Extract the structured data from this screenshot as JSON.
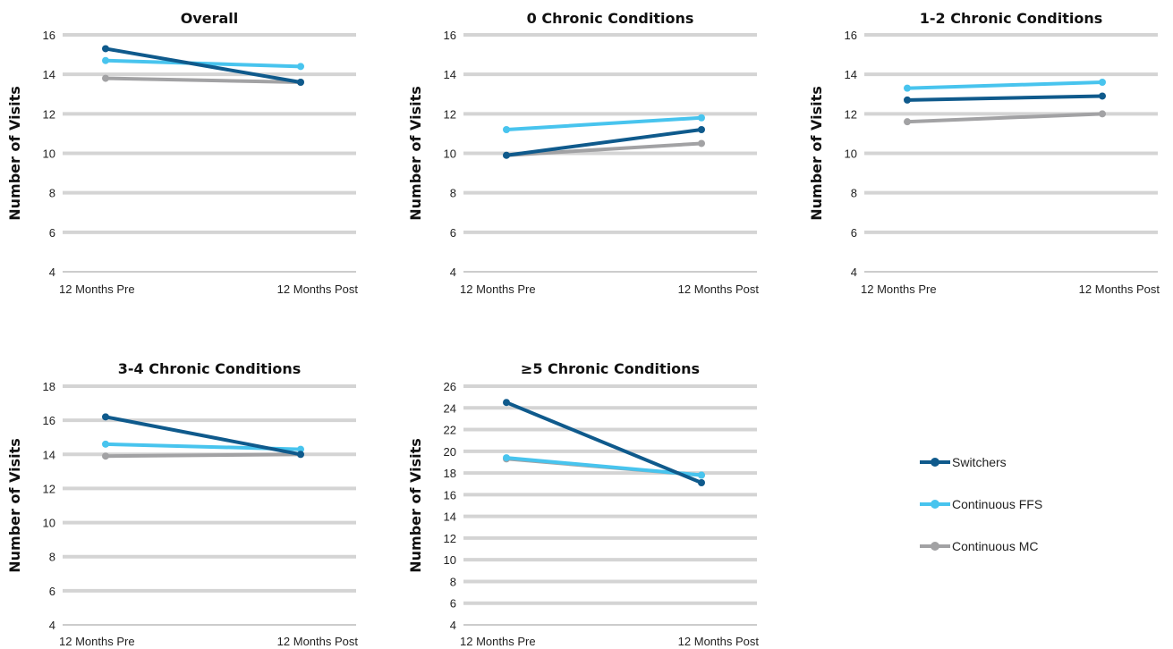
{
  "colors": {
    "switchers": "#0f5a8c",
    "ffs": "#48c4ee",
    "mc": "#a2a2a4",
    "grid": "#d4d4d4"
  },
  "legend": [
    {
      "name": "Switchers",
      "color": "#0f5a8c"
    },
    {
      "name": "Continuous FFS",
      "color": "#48c4ee"
    },
    {
      "name": "Continuous MC",
      "color": "#a2a2a4"
    }
  ],
  "chart_data": [
    {
      "type": "line",
      "title": "Overall",
      "ylabel": "Number of Visits",
      "categories": [
        "12 Months Pre",
        "12 Months Post"
      ],
      "ylim": [
        4,
        16
      ],
      "yticks": [
        4,
        6,
        8,
        10,
        12,
        14,
        16
      ],
      "series": [
        {
          "name": "Switchers",
          "values": [
            15.3,
            13.6
          ]
        },
        {
          "name": "Continuous FFS",
          "values": [
            14.7,
            14.4
          ]
        },
        {
          "name": "Continuous MC",
          "values": [
            13.8,
            13.6
          ]
        }
      ]
    },
    {
      "type": "line",
      "title": "0 Chronic Conditions",
      "ylabel": "Number of Visits",
      "categories": [
        "12 Months Pre",
        "12 Months Post"
      ],
      "ylim": [
        4,
        16
      ],
      "yticks": [
        4,
        6,
        8,
        10,
        12,
        14,
        16
      ],
      "series": [
        {
          "name": "Switchers",
          "values": [
            9.9,
            11.2
          ]
        },
        {
          "name": "Continuous FFS",
          "values": [
            11.2,
            11.8
          ]
        },
        {
          "name": "Continuous MC",
          "values": [
            9.9,
            10.5
          ]
        }
      ]
    },
    {
      "type": "line",
      "title": "1-2 Chronic Conditions",
      "ylabel": "Number of Visits",
      "categories": [
        "12 Months Pre",
        "12 Months Post"
      ],
      "ylim": [
        4,
        16
      ],
      "yticks": [
        4,
        6,
        8,
        10,
        12,
        14,
        16
      ],
      "series": [
        {
          "name": "Switchers",
          "values": [
            12.7,
            12.9
          ]
        },
        {
          "name": "Continuous FFS",
          "values": [
            13.3,
            13.6
          ]
        },
        {
          "name": "Continuous MC",
          "values": [
            11.6,
            12.0
          ]
        }
      ]
    },
    {
      "type": "line",
      "title": "3-4 Chronic Conditions",
      "ylabel": "Number of Visits",
      "categories": [
        "12 Months Pre",
        "12 Months Post"
      ],
      "ylim": [
        4,
        18
      ],
      "yticks": [
        4,
        6,
        8,
        10,
        12,
        14,
        16,
        18
      ],
      "series": [
        {
          "name": "Switchers",
          "values": [
            16.2,
            14.0
          ]
        },
        {
          "name": "Continuous FFS",
          "values": [
            14.6,
            14.3
          ]
        },
        {
          "name": "Continuous MC",
          "values": [
            13.9,
            14.0
          ]
        }
      ]
    },
    {
      "type": "line",
      "title": "≥5 Chronic Conditions",
      "ylabel": "Number of Visits",
      "categories": [
        "12 Months Pre",
        "12 Months Post"
      ],
      "ylim": [
        4,
        26
      ],
      "yticks": [
        4,
        6,
        8,
        10,
        12,
        14,
        16,
        18,
        20,
        22,
        24,
        26
      ],
      "series": [
        {
          "name": "Switchers",
          "values": [
            24.5,
            17.1
          ]
        },
        {
          "name": "Continuous FFS",
          "values": [
            19.4,
            17.8
          ]
        },
        {
          "name": "Continuous MC",
          "values": [
            19.3,
            17.8
          ]
        }
      ]
    }
  ]
}
